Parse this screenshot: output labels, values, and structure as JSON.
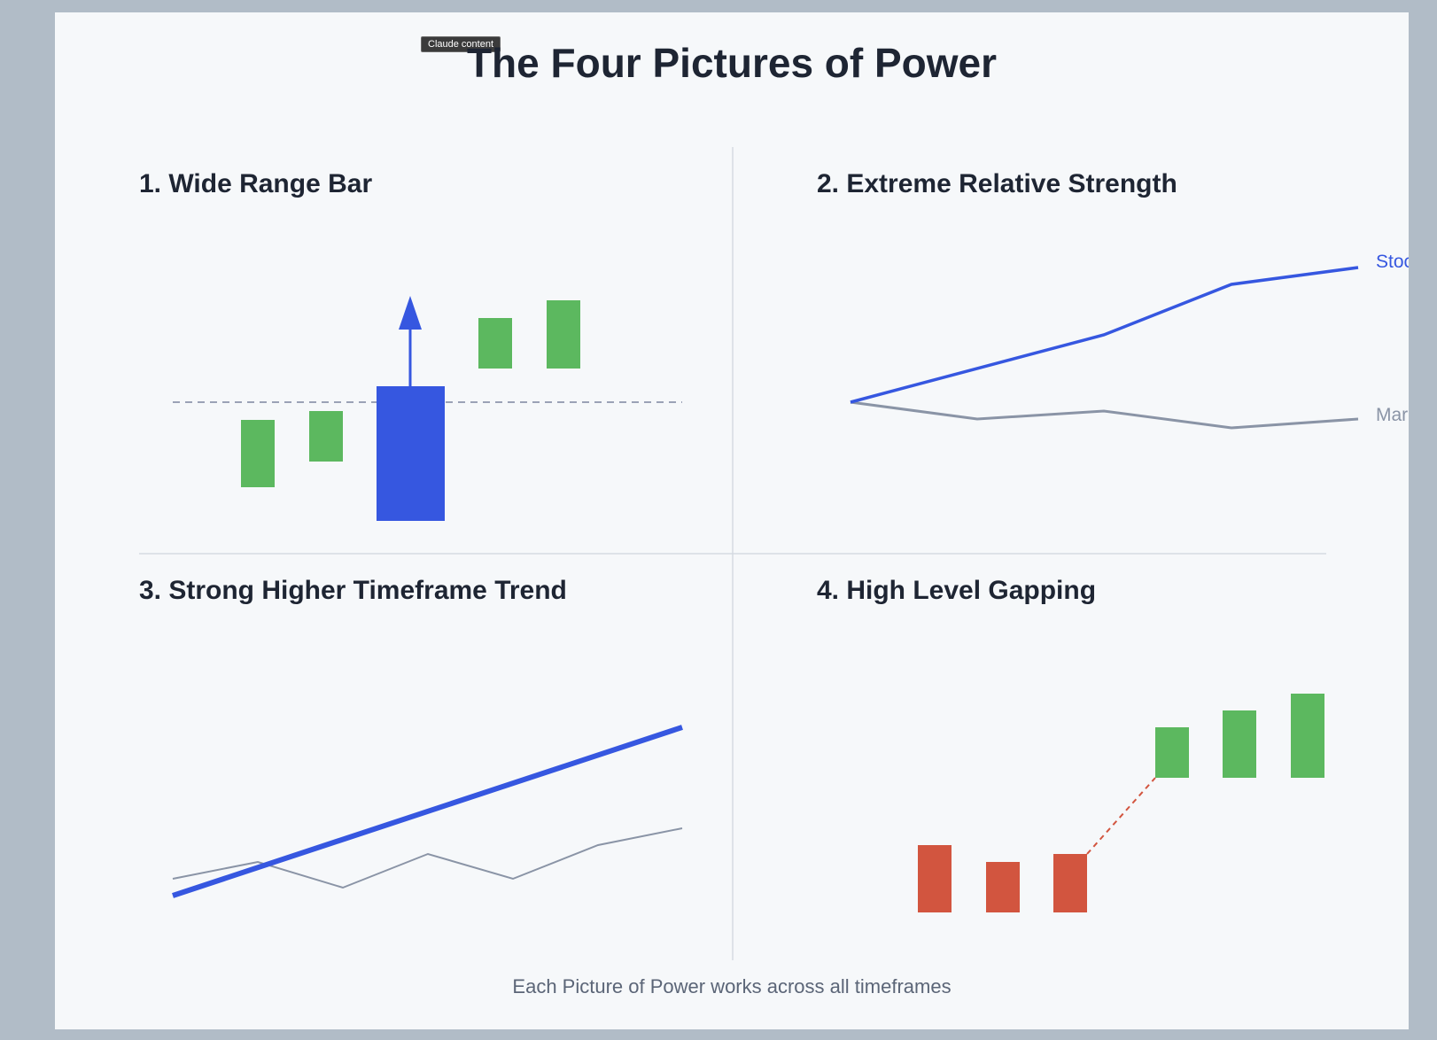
{
  "badge": "Claude content",
  "title": "The Four Pictures of Power",
  "footer": "Each Picture of Power works across all timeframes",
  "colors": {
    "blue": "#3657e0",
    "green": "#5cb85f",
    "red": "#d2553f",
    "gray": "#8a94a6",
    "divider": "#d5dae1",
    "text": "#1e2533"
  },
  "panels": [
    {
      "title": "1. Wide Range Bar",
      "icon": "up-arrow-icon"
    },
    {
      "title": "2. Extreme Relative Strength",
      "labels": {
        "stock": "Stock",
        "market": "Market"
      }
    },
    {
      "title": "3. Strong Higher Timeframe Trend"
    },
    {
      "title": "4. High Level Gapping"
    }
  ]
}
